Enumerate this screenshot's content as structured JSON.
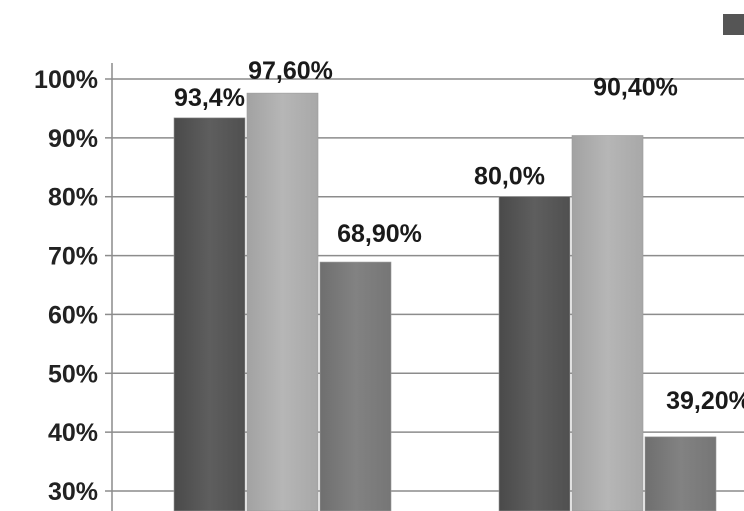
{
  "chart_data": {
    "type": "bar",
    "title": "",
    "xlabel": "",
    "ylabel": "",
    "ylim": [
      30,
      100
    ],
    "yticks": [
      30,
      40,
      50,
      60,
      70,
      80,
      90,
      100
    ],
    "ytick_labels": [
      "30%",
      "40%",
      "50%",
      "60%",
      "70%",
      "80%",
      "90%",
      "100%"
    ],
    "grid": true,
    "legend": "top-right, cropped",
    "categories": [
      "",
      ""
    ],
    "series": [
      {
        "color": "#595959",
        "values": [
          93.4,
          80.0
        ],
        "labels": [
          "93,4%",
          "80,0%"
        ]
      },
      {
        "color": "#b0b0b0",
        "values": [
          97.6,
          90.4
        ],
        "labels": [
          "97,60%",
          "90,40%"
        ]
      },
      {
        "color": "#7d7d7d",
        "values": [
          68.9,
          39.2
        ],
        "labels": [
          "68,90%",
          "39,20%"
        ]
      }
    ]
  }
}
